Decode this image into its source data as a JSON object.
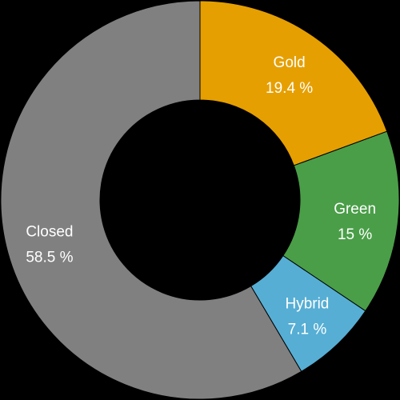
{
  "chart_data": {
    "type": "pie",
    "variant": "donut",
    "slices": [
      {
        "label": "Gold",
        "value_text": "19.4 %",
        "value": 19.4,
        "color": "#E69F00"
      },
      {
        "label": "Green",
        "value_text": "15 %",
        "value": 15.0,
        "color": "#4A9E48"
      },
      {
        "label": "Hybrid",
        "value_text": "7.1 %",
        "value": 7.1,
        "color": "#56AED4"
      },
      {
        "label": "Closed",
        "value_text": "58.5 %",
        "value": 58.5,
        "color": "#808080"
      }
    ],
    "start_angle": "top",
    "direction": "clockwise",
    "legend": "none",
    "background": "#000000"
  }
}
